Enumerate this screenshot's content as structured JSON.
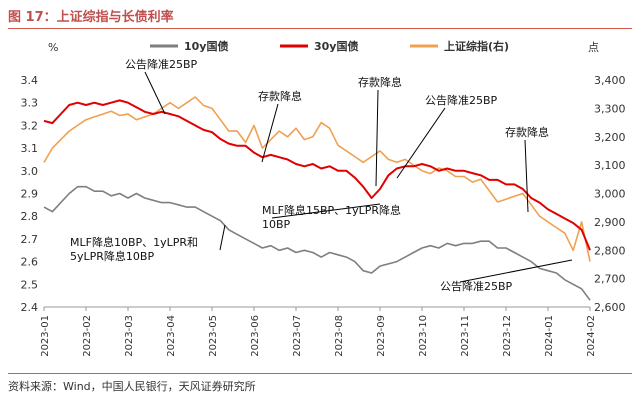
{
  "title": "图 17：上证综指与长债利率",
  "source": "资料来源：Wind，中国人民银行，天风证券研究所",
  "chart_data": {
    "type": "line",
    "left_unit": "%",
    "right_unit": "点",
    "y_left_range": [
      2.4,
      3.4
    ],
    "y_right_range": [
      2600,
      3400
    ],
    "y_left_ticks": [
      "3.4",
      "3.3",
      "3.2",
      "3.1",
      "3.0",
      "2.9",
      "2.8",
      "2.7",
      "2.6",
      "2.5",
      "2.4"
    ],
    "y_right_ticks": [
      "3,400",
      "3,300",
      "3,200",
      "3,100",
      "3,000",
      "2,900",
      "2,800",
      "2,700",
      "2,600"
    ],
    "x_ticks": [
      "2023-01",
      "2023-02",
      "2023-03",
      "2023-04",
      "2023-05",
      "2023-06",
      "2023-07",
      "2023-08",
      "2023-09",
      "2023-10",
      "2023-11",
      "2023-12",
      "2024-01",
      "2024-02"
    ],
    "grid": false,
    "legend_position": "top",
    "series": [
      {
        "name": "10y国债",
        "axis": "left",
        "color": "#7f7f7f",
        "x": [
          0,
          0.2,
          0.4,
          0.6,
          0.8,
          1.0,
          1.2,
          1.4,
          1.6,
          1.8,
          2.0,
          2.2,
          2.4,
          2.6,
          2.8,
          3.0,
          3.2,
          3.4,
          3.6,
          3.8,
          4.0,
          4.2,
          4.4,
          4.6,
          4.8,
          5.0,
          5.2,
          5.4,
          5.6,
          5.8,
          6.0,
          6.2,
          6.4,
          6.6,
          6.8,
          7.0,
          7.2,
          7.4,
          7.6,
          7.8,
          8.0,
          8.2,
          8.4,
          8.6,
          8.8,
          9.0,
          9.2,
          9.4,
          9.6,
          9.8,
          10.0,
          10.2,
          10.4,
          10.6,
          10.8,
          11.0,
          11.2,
          11.4,
          11.6,
          11.8,
          12.0,
          12.2,
          12.4,
          12.6,
          12.8,
          13.0
        ],
        "values": [
          2.84,
          2.82,
          2.86,
          2.9,
          2.93,
          2.93,
          2.91,
          2.91,
          2.89,
          2.9,
          2.88,
          2.9,
          2.88,
          2.87,
          2.86,
          2.86,
          2.85,
          2.84,
          2.84,
          2.82,
          2.8,
          2.78,
          2.74,
          2.72,
          2.7,
          2.68,
          2.66,
          2.67,
          2.65,
          2.66,
          2.64,
          2.65,
          2.64,
          2.62,
          2.64,
          2.63,
          2.62,
          2.6,
          2.56,
          2.55,
          2.58,
          2.59,
          2.6,
          2.62,
          2.64,
          2.66,
          2.67,
          2.66,
          2.68,
          2.67,
          2.68,
          2.68,
          2.69,
          2.69,
          2.66,
          2.66,
          2.64,
          2.62,
          2.6,
          2.57,
          2.56,
          2.55,
          2.52,
          2.5,
          2.48,
          2.43
        ]
      },
      {
        "name": "30y国债",
        "axis": "left",
        "color": "#e00000",
        "x": [
          0,
          0.2,
          0.4,
          0.6,
          0.8,
          1.0,
          1.2,
          1.4,
          1.6,
          1.8,
          2.0,
          2.2,
          2.4,
          2.6,
          2.8,
          3.0,
          3.2,
          3.4,
          3.6,
          3.8,
          4.0,
          4.2,
          4.4,
          4.6,
          4.8,
          5.0,
          5.2,
          5.4,
          5.6,
          5.8,
          6.0,
          6.2,
          6.4,
          6.6,
          6.8,
          7.0,
          7.2,
          7.4,
          7.6,
          7.8,
          8.0,
          8.2,
          8.4,
          8.6,
          8.8,
          9.0,
          9.2,
          9.4,
          9.6,
          9.8,
          10.0,
          10.2,
          10.4,
          10.6,
          10.8,
          11.0,
          11.2,
          11.4,
          11.6,
          11.8,
          12.0,
          12.2,
          12.4,
          12.6,
          12.8,
          13.0
        ],
        "values": [
          3.22,
          3.21,
          3.25,
          3.29,
          3.3,
          3.29,
          3.3,
          3.29,
          3.3,
          3.31,
          3.3,
          3.28,
          3.26,
          3.25,
          3.26,
          3.25,
          3.24,
          3.22,
          3.2,
          3.18,
          3.17,
          3.14,
          3.12,
          3.11,
          3.11,
          3.08,
          3.06,
          3.07,
          3.06,
          3.05,
          3.03,
          3.02,
          3.03,
          3.01,
          3.02,
          3.0,
          3.0,
          2.97,
          2.93,
          2.88,
          2.92,
          2.98,
          3.01,
          3.02,
          3.02,
          3.03,
          3.02,
          3.0,
          3.01,
          3.0,
          3.0,
          2.99,
          2.98,
          2.96,
          2.96,
          2.94,
          2.94,
          2.92,
          2.88,
          2.86,
          2.83,
          2.81,
          2.79,
          2.77,
          2.74,
          2.65
        ]
      },
      {
        "name": "上证综指(右)",
        "axis": "right",
        "color": "#f0a050",
        "x": [
          0,
          0.2,
          0.4,
          0.6,
          0.8,
          1.0,
          1.2,
          1.4,
          1.6,
          1.8,
          2.0,
          2.2,
          2.4,
          2.6,
          2.8,
          3.0,
          3.2,
          3.4,
          3.6,
          3.8,
          4.0,
          4.2,
          4.4,
          4.6,
          4.8,
          5.0,
          5.2,
          5.4,
          5.6,
          5.8,
          6.0,
          6.2,
          6.4,
          6.6,
          6.8,
          7.0,
          7.2,
          7.4,
          7.6,
          7.8,
          8.0,
          8.2,
          8.4,
          8.6,
          8.8,
          9.0,
          9.2,
          9.4,
          9.6,
          9.8,
          10.0,
          10.2,
          10.4,
          10.6,
          10.8,
          11.0,
          11.2,
          11.4,
          11.6,
          11.8,
          12.0,
          12.2,
          12.4,
          12.6,
          12.8,
          13.0
        ],
        "values": [
          3110,
          3160,
          3190,
          3220,
          3240,
          3260,
          3270,
          3280,
          3290,
          3275,
          3280,
          3260,
          3270,
          3280,
          3300,
          3320,
          3300,
          3320,
          3340,
          3310,
          3300,
          3260,
          3220,
          3220,
          3180,
          3240,
          3160,
          3190,
          3220,
          3200,
          3230,
          3190,
          3200,
          3250,
          3230,
          3170,
          3150,
          3130,
          3110,
          3130,
          3150,
          3120,
          3110,
          3120,
          3100,
          3080,
          3070,
          3090,
          3080,
          3060,
          3060,
          3040,
          3050,
          3010,
          2970,
          2980,
          2990,
          3000,
          2960,
          2920,
          2900,
          2880,
          2860,
          2800,
          2900,
          2760
        ]
      }
    ],
    "annotations": [
      {
        "text": "公告降准25BP",
        "x": 2.1,
        "y": 3.25
      },
      {
        "text": "存款降息",
        "x": 5.5,
        "y": 3.02
      },
      {
        "text": "MLF降息10BP、1yLPR和\n5yLPR降息10BP",
        "x": 4.3,
        "y": 2.76
      },
      {
        "text": "存款降息",
        "x": 8.05,
        "y": 2.9
      },
      {
        "text": "MLF降息15BP、1yLPR降息\n10BP",
        "x": 7.7,
        "y": 2.72
      },
      {
        "text": "公告降准25BP",
        "x": 8.5,
        "y": 2.97
      },
      {
        "text": "存款降息",
        "x": 12.2,
        "y": 2.85
      },
      {
        "text": "公告降准25BP",
        "x": 12.8,
        "y": 2.69
      }
    ]
  }
}
